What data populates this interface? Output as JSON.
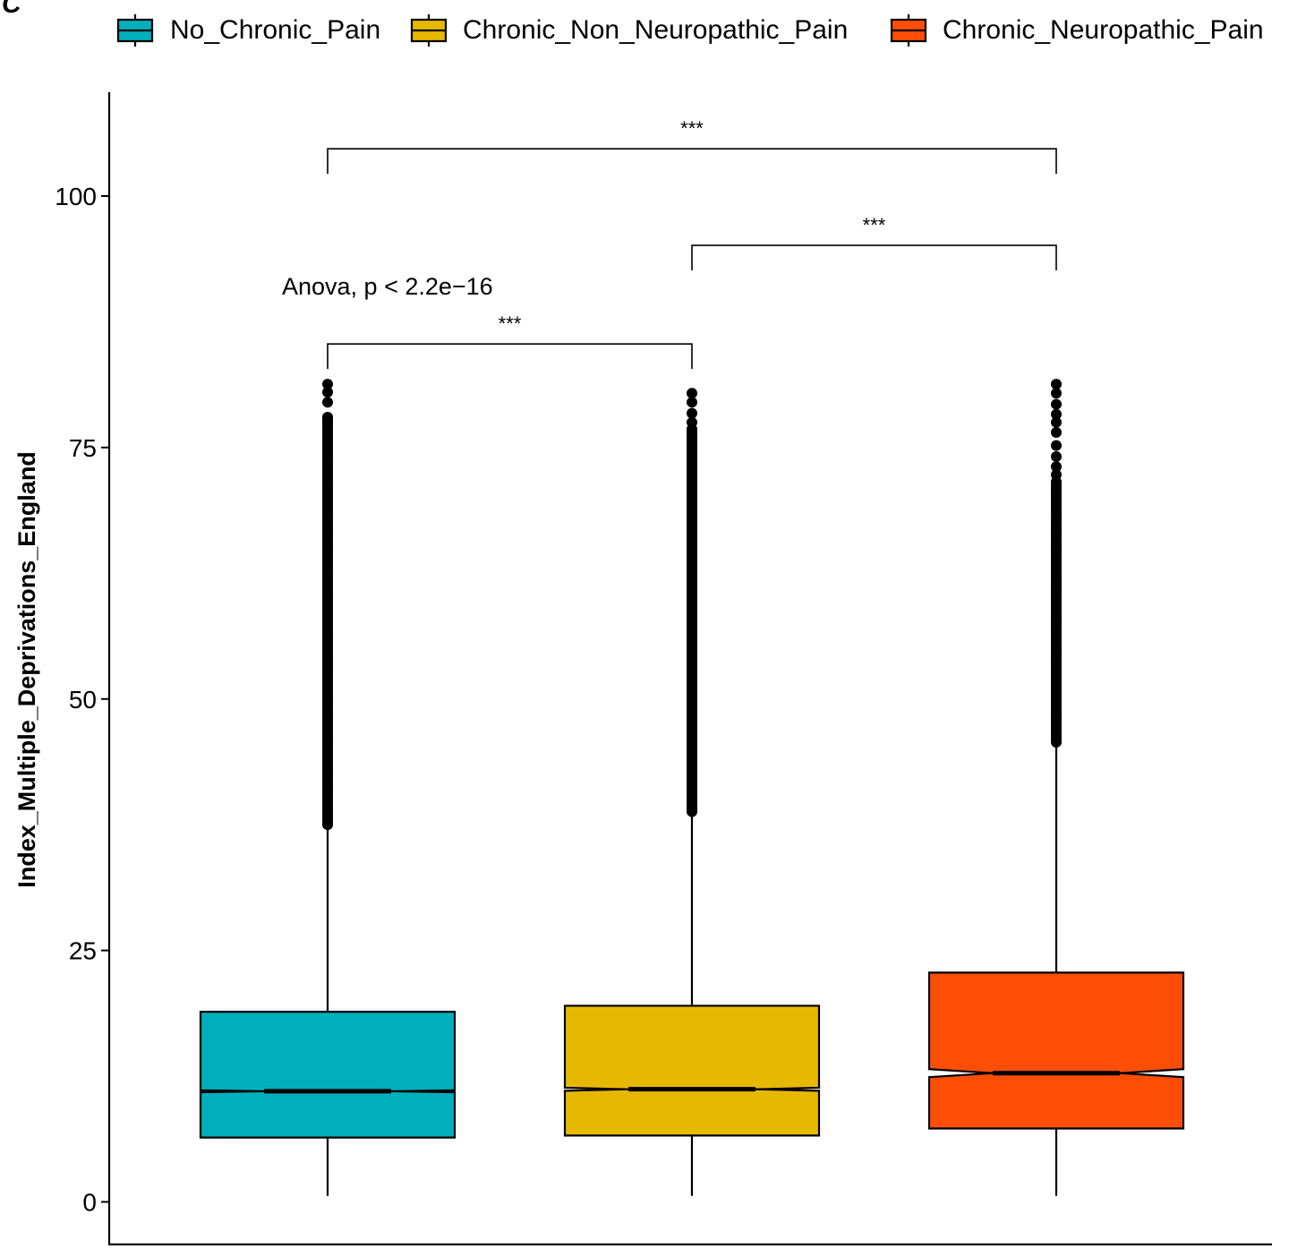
{
  "panel_label": "C",
  "chart_data": {
    "type": "boxplot",
    "notched": true,
    "title": "",
    "xlabel": "",
    "ylabel": "Index_Multiple_Deprivations_England",
    "ylim": [
      -3.8,
      110.4
    ],
    "yticks": [
      0,
      25,
      50,
      75,
      100
    ],
    "grid": false,
    "legend_position": "top",
    "categories": [
      "No_Chronic_Pain",
      "Chronic_Non_Neuropathic_Pain",
      "Chronic_Neuropathic_Pain"
    ],
    "series": [
      {
        "name": "No_Chronic_Pain",
        "color": "#00AFBB",
        "whisker_low": 0.6,
        "q1": 6.4,
        "median": 11.0,
        "q3": 18.9,
        "notch_low": 10.9,
        "notch_high": 11.1,
        "whisker_high": 37.5,
        "outliers_range": [
          37.5,
          81.3
        ],
        "outliers_sparse": [
          78.0,
          79.5,
          80.5,
          81.3
        ]
      },
      {
        "name": "Chronic_Non_Neuropathic_Pain",
        "color": "#E7B800",
        "whisker_low": 0.6,
        "q1": 6.6,
        "median": 11.2,
        "q3": 19.5,
        "notch_low": 11.05,
        "notch_high": 11.35,
        "whisker_high": 38.8,
        "outliers_range": [
          38.8,
          80.4
        ],
        "outliers_sparse": [
          76.8,
          77.5,
          78.4,
          79.5,
          80.4
        ]
      },
      {
        "name": "Chronic_Neuropathic_Pain",
        "color": "#FC4E07",
        "whisker_low": 0.6,
        "q1": 7.3,
        "median": 12.8,
        "q3": 22.8,
        "notch_low": 12.4,
        "notch_high": 13.2,
        "whisker_high": 45.7,
        "outliers_range": [
          45.7,
          81.3
        ],
        "outliers_sparse": [
          71.6,
          72.3,
          73.1,
          74.1,
          75.2,
          76.5,
          77.5,
          78.3,
          79.3,
          80.4,
          81.3
        ]
      }
    ],
    "annotations": {
      "anova": {
        "text": "Anova, p < 2.2e−16",
        "x_between": [
          0.4,
          1.5
        ],
        "y": 91.0
      },
      "brackets": [
        {
          "from": "No_Chronic_Pain",
          "to": "Chronic_Non_Neuropathic_Pain",
          "y": 85.3,
          "label": "***"
        },
        {
          "from": "Chronic_Non_Neuropathic_Pain",
          "to": "Chronic_Neuropathic_Pain",
          "y": 95.1,
          "label": "***"
        },
        {
          "from": "No_Chronic_Pain",
          "to": "Chronic_Neuropathic_Pain",
          "y": 104.7,
          "label": "***"
        }
      ]
    }
  }
}
